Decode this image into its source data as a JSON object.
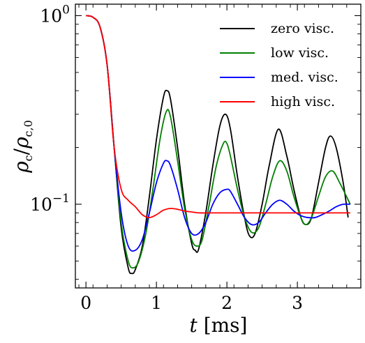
{
  "chart_data": {
    "type": "line",
    "xlabel": "t [ms]",
    "ylabel": "ρc/ρc,0",
    "xlim": [
      -0.15,
      3.9
    ],
    "ylim": [
      0.036,
      1.15
    ],
    "yscale": "log",
    "grid": false,
    "legend_position": "top-right",
    "x_ticks": [
      {
        "value": 0,
        "label": "0"
      },
      {
        "value": 1,
        "label": "1"
      },
      {
        "value": 2,
        "label": "2"
      },
      {
        "value": 3,
        "label": "3"
      }
    ],
    "y_ticks": [
      {
        "value": 1,
        "label": "10",
        "exp": "0"
      },
      {
        "value": 0.1,
        "label": "10",
        "exp": "−1"
      }
    ],
    "series": [
      {
        "name": "zero visc.",
        "color": "#000000",
        "x": [
          0,
          0.1,
          0.2,
          0.3,
          0.4,
          0.5,
          0.6,
          0.65,
          0.7,
          0.8,
          0.9,
          1.0,
          1.1,
          1.15,
          1.2,
          1.3,
          1.4,
          1.5,
          1.55,
          1.6,
          1.7,
          1.8,
          1.9,
          1.98,
          2.05,
          2.15,
          2.25,
          2.32,
          2.4,
          2.5,
          2.6,
          2.73,
          2.85,
          2.95,
          3.05,
          3.12,
          3.2,
          3.3,
          3.4,
          3.47,
          3.55,
          3.65,
          3.72
        ],
        "y": [
          1,
          0.98,
          0.87,
          0.55,
          0.2,
          0.075,
          0.046,
          0.043,
          0.045,
          0.06,
          0.11,
          0.22,
          0.37,
          0.4,
          0.36,
          0.2,
          0.1,
          0.062,
          0.057,
          0.058,
          0.09,
          0.16,
          0.26,
          0.3,
          0.25,
          0.14,
          0.085,
          0.068,
          0.07,
          0.1,
          0.16,
          0.25,
          0.18,
          0.12,
          0.085,
          0.078,
          0.085,
          0.13,
          0.2,
          0.23,
          0.2,
          0.13,
          0.085
        ]
      },
      {
        "name": "low visc.",
        "color": "#008000",
        "x": [
          0,
          0.1,
          0.2,
          0.3,
          0.4,
          0.5,
          0.6,
          0.67,
          0.75,
          0.85,
          0.95,
          1.05,
          1.14,
          1.2,
          1.3,
          1.4,
          1.5,
          1.58,
          1.65,
          1.75,
          1.85,
          1.95,
          2.0,
          2.05,
          2.15,
          2.25,
          2.35,
          2.45,
          2.55,
          2.65,
          2.75,
          2.85,
          2.95,
          3.05,
          3.12,
          3.2,
          3.3,
          3.4,
          3.5,
          3.6,
          3.75
        ],
        "y": [
          1,
          0.98,
          0.87,
          0.55,
          0.2,
          0.08,
          0.05,
          0.046,
          0.05,
          0.07,
          0.12,
          0.22,
          0.31,
          0.29,
          0.17,
          0.095,
          0.065,
          0.06,
          0.065,
          0.1,
          0.16,
          0.21,
          0.21,
          0.18,
          0.12,
          0.085,
          0.071,
          0.075,
          0.1,
          0.14,
          0.17,
          0.15,
          0.11,
          0.085,
          0.078,
          0.085,
          0.11,
          0.14,
          0.15,
          0.13,
          0.1
        ]
      },
      {
        "name": "med. visc.",
        "color": "#0000ff",
        "x": [
          0,
          0.1,
          0.2,
          0.3,
          0.4,
          0.5,
          0.6,
          0.7,
          0.8,
          0.9,
          1.0,
          1.1,
          1.15,
          1.2,
          1.3,
          1.4,
          1.5,
          1.6,
          1.7,
          1.8,
          1.9,
          2.0,
          2.05,
          2.15,
          2.25,
          2.35,
          2.45,
          2.55,
          2.65,
          2.75,
          2.85,
          2.95,
          3.05,
          3.15,
          3.25,
          3.35,
          3.45,
          3.55,
          3.65,
          3.75
        ],
        "y": [
          1,
          0.98,
          0.87,
          0.55,
          0.2,
          0.09,
          0.06,
          0.057,
          0.065,
          0.09,
          0.13,
          0.165,
          0.17,
          0.16,
          0.12,
          0.085,
          0.07,
          0.07,
          0.08,
          0.1,
          0.115,
          0.12,
          0.117,
          0.1,
          0.085,
          0.078,
          0.08,
          0.09,
          0.1,
          0.105,
          0.1,
          0.092,
          0.087,
          0.085,
          0.085,
          0.088,
          0.092,
          0.097,
          0.1,
          0.1
        ]
      },
      {
        "name": "high visc.",
        "color": "#ff0000",
        "x": [
          0,
          0.1,
          0.2,
          0.3,
          0.4,
          0.5,
          0.6,
          0.7,
          0.8,
          0.9,
          1.0,
          1.1,
          1.2,
          1.3,
          1.4,
          1.5,
          1.6,
          1.8,
          2.0,
          2.3,
          2.6,
          3.0,
          3.4,
          3.75
        ],
        "y": [
          1,
          0.98,
          0.87,
          0.55,
          0.2,
          0.12,
          0.105,
          0.097,
          0.088,
          0.085,
          0.088,
          0.093,
          0.095,
          0.094,
          0.092,
          0.091,
          0.09,
          0.09,
          0.09,
          0.09,
          0.09,
          0.09,
          0.09,
          0.09
        ]
      }
    ]
  }
}
